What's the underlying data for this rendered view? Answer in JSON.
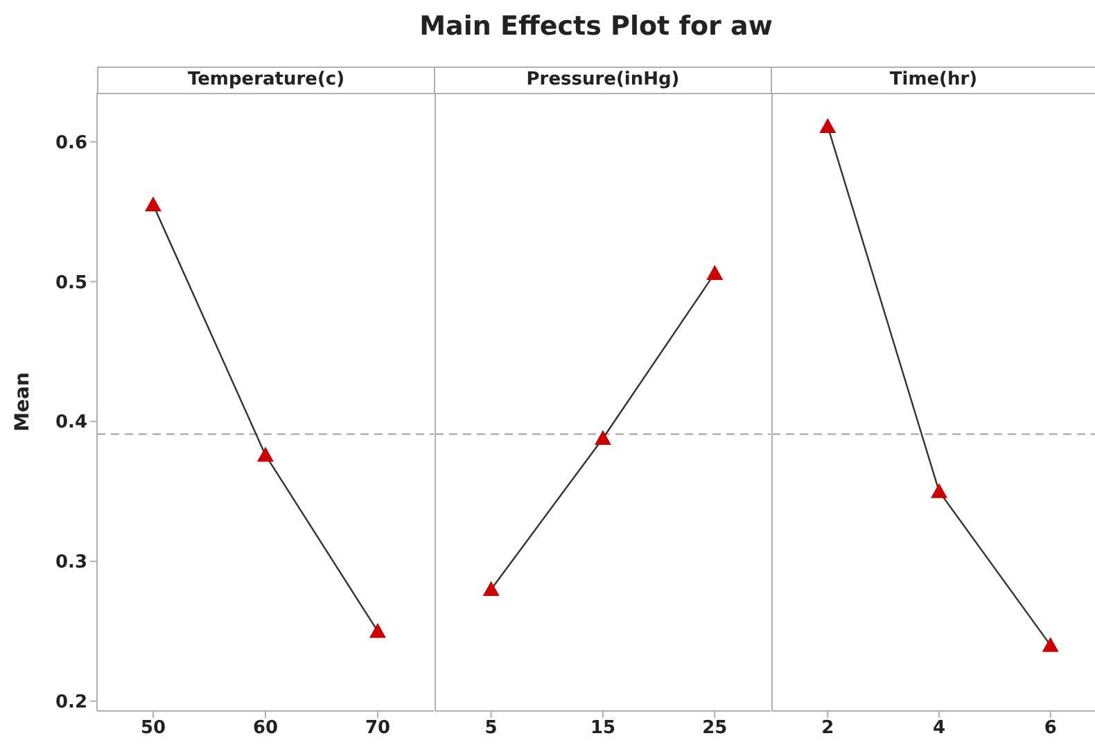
{
  "chart_data": [
    {
      "type": "line",
      "xlabel": "Temperature(c)",
      "ylabel": "Mean",
      "x": [
        50,
        60,
        70
      ],
      "series": [
        {
          "color": "#cc0000",
          "values": [
            0.555,
            0.376,
            0.25
          ]
        }
      ],
      "xlim": [
        45,
        75
      ],
      "xticks": [
        50,
        60,
        70
      ],
      "ylim": [
        0.193,
        0.635
      ],
      "yticks": [
        0.2,
        0.3,
        0.4,
        0.5,
        0.6
      ],
      "ref_lines": [
        {
          "axis": "y",
          "value": 0.391,
          "color": "#a0a0a0",
          "line_style": "dashed"
        }
      ],
      "marker": "triangle",
      "line_style": "solid",
      "grid": false,
      "legend": false
    },
    {
      "type": "line",
      "title": "Main Effects Plot for aw",
      "xlabel": "Pressure(inHg)",
      "x": [
        5,
        15,
        25
      ],
      "series": [
        {
          "color": "#cc0000",
          "values": [
            0.28,
            0.388,
            0.506
          ]
        }
      ],
      "xlim": [
        0,
        30
      ],
      "xticks": [
        5,
        15,
        25
      ],
      "ylim": [
        0.193,
        0.635
      ],
      "yticks": [
        0.2,
        0.3,
        0.4,
        0.5,
        0.6
      ],
      "tick_labels": "x",
      "ref_lines": [
        {
          "axis": "y",
          "value": 0.391,
          "color": "#a0a0a0",
          "line_style": "dashed"
        }
      ],
      "marker": "triangle",
      "line_style": "solid",
      "grid": false,
      "legend": false
    },
    {
      "type": "line",
      "xlabel": "Time(hr)",
      "x": [
        2,
        4,
        6
      ],
      "series": [
        {
          "color": "#cc0000",
          "values": [
            0.611,
            0.35,
            0.24
          ]
        }
      ],
      "xlim": [
        1,
        6.8
      ],
      "xticks": [
        2,
        4,
        6
      ],
      "ylim": [
        0.193,
        0.635
      ],
      "yticks": [
        0.2,
        0.3,
        0.4,
        0.5,
        0.6
      ],
      "tick_labels": "x",
      "ref_lines": [
        {
          "axis": "y",
          "value": 0.391,
          "color": "#a0a0a0",
          "line_style": "dashed"
        }
      ],
      "marker": "triangle",
      "line_style": "solid",
      "grid": false,
      "legend": false
    }
  ]
}
